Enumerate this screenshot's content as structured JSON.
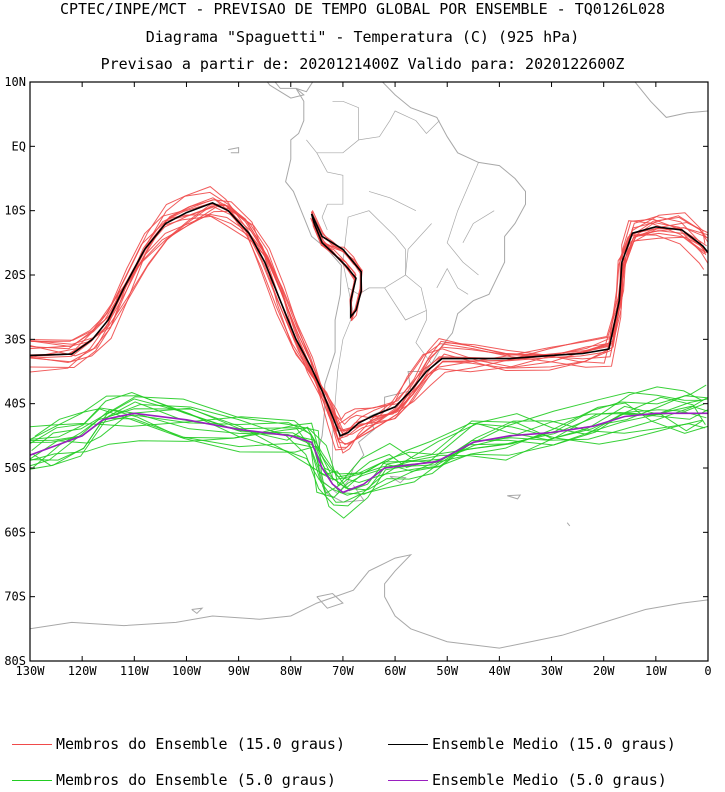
{
  "header": {
    "line1": "CPTEC/INPE/MCT - PREVISAO DE TEMPO GLOBAL POR ENSEMBLE - TQ0126L028",
    "line2": "Diagrama \"Spaguetti\" - Temperatura (C) (925 hPa)",
    "line3": "Previsao a partir de: 2020121400Z  Valido para: 2020122600Z"
  },
  "colors": {
    "member15": "#f04a4a",
    "mean15": "#000000",
    "member5": "#22cc22",
    "mean5": "#9a1fc0",
    "coast": "#a8a8a8"
  },
  "legend": [
    {
      "label": "Membros do Ensemble (15.0 graus)",
      "color": "#f04a4a"
    },
    {
      "label": "Ensemble Medio (15.0 graus)",
      "color": "#000000"
    },
    {
      "label": "Membros do Ensemble (5.0 graus)",
      "color": "#22cc22"
    },
    {
      "label": "Ensemble Medio (5.0 graus)",
      "color": "#9a1fc0"
    }
  ],
  "chart_data": {
    "type": "line",
    "title": "Diagrama \"Spaguetti\" - Temperatura (C) (925 hPa)",
    "xlim": [
      -130,
      0
    ],
    "ylim": [
      -80,
      10
    ],
    "x_ticks": [
      {
        "v": -130,
        "label": "130W"
      },
      {
        "v": -120,
        "label": "120W"
      },
      {
        "v": -110,
        "label": "110W"
      },
      {
        "v": -100,
        "label": "100W"
      },
      {
        "v": -90,
        "label": "90W"
      },
      {
        "v": -80,
        "label": "80W"
      },
      {
        "v": -70,
        "label": "70W"
      },
      {
        "v": -60,
        "label": "60W"
      },
      {
        "v": -50,
        "label": "50W"
      },
      {
        "v": -40,
        "label": "40W"
      },
      {
        "v": -30,
        "label": "30W"
      },
      {
        "v": -20,
        "label": "20W"
      },
      {
        "v": -10,
        "label": "10W"
      },
      {
        "v": 0,
        "label": "0"
      }
    ],
    "y_ticks": [
      {
        "v": 10,
        "label": "10N"
      },
      {
        "v": 0,
        "label": "EQ"
      },
      {
        "v": -10,
        "label": "10S"
      },
      {
        "v": -20,
        "label": "20S"
      },
      {
        "v": -30,
        "label": "30S"
      },
      {
        "v": -40,
        "label": "40S"
      },
      {
        "v": -50,
        "label": "50S"
      },
      {
        "v": -60,
        "label": "60S"
      },
      {
        "v": -70,
        "label": "70S"
      },
      {
        "v": -80,
        "label": "80S"
      }
    ],
    "series": [
      {
        "name": "Ensemble Medio (15.0 graus)",
        "points": [
          [
            -130,
            -32.5
          ],
          [
            -122,
            -32.3
          ],
          [
            -118,
            -30
          ],
          [
            -115,
            -27
          ],
          [
            -112,
            -22
          ],
          [
            -108,
            -16
          ],
          [
            -104,
            -12
          ],
          [
            -100,
            -10.3
          ],
          [
            -95,
            -8.8
          ],
          [
            -92,
            -10
          ],
          [
            -88,
            -13.5
          ],
          [
            -85,
            -18
          ],
          [
            -82,
            -24
          ],
          [
            -79,
            -30
          ],
          [
            -76,
            -34.5
          ],
          [
            -74,
            -38
          ],
          [
            -72,
            -42
          ],
          [
            -70.5,
            -45
          ],
          [
            -69,
            -44.5
          ],
          [
            -67,
            -43
          ],
          [
            -64,
            -41.8
          ],
          [
            -60,
            -40.5
          ],
          [
            -57,
            -38
          ],
          [
            -54,
            -35
          ],
          [
            -51,
            -33
          ],
          [
            -45,
            -33
          ],
          [
            -38,
            -33
          ],
          [
            -30,
            -32.5
          ],
          [
            -24,
            -32.2
          ],
          [
            -19,
            -31.5
          ],
          [
            -17,
            -24
          ],
          [
            -16.5,
            -18
          ],
          [
            -14.5,
            -13.5
          ],
          [
            -10,
            -12.5
          ],
          [
            -5,
            -13
          ],
          [
            -1,
            -15.5
          ],
          [
            0,
            -16.5
          ]
        ]
      },
      {
        "name": "Ensemble Medio (15.0 graus) - Andes",
        "points": [
          [
            -76,
            -10.5
          ],
          [
            -74,
            -14
          ],
          [
            -72,
            -15
          ],
          [
            -70,
            -16
          ],
          [
            -68,
            -18
          ],
          [
            -66.5,
            -19.5
          ],
          [
            -66.5,
            -22.5
          ],
          [
            -67.5,
            -25.5
          ],
          [
            -68.5,
            -26.5
          ],
          [
            -68.5,
            -24
          ],
          [
            -67.5,
            -20.5
          ],
          [
            -69.5,
            -18.5
          ],
          [
            -72,
            -16.5
          ],
          [
            -74,
            -15
          ],
          [
            -75.5,
            -12
          ],
          [
            -76,
            -10.5
          ]
        ]
      },
      {
        "name": "Ensemble Medio (5.0 graus)",
        "points": [
          [
            -130,
            -48
          ],
          [
            -125,
            -46.5
          ],
          [
            -120,
            -45
          ],
          [
            -116,
            -42.5
          ],
          [
            -110,
            -41.5
          ],
          [
            -100,
            -42.5
          ],
          [
            -90,
            -44
          ],
          [
            -80,
            -45
          ],
          [
            -76,
            -46
          ],
          [
            -74,
            -50
          ],
          [
            -72,
            -52.5
          ],
          [
            -70,
            -53.8
          ],
          [
            -66,
            -52.5
          ],
          [
            -62,
            -50
          ],
          [
            -57,
            -49.5
          ],
          [
            -52,
            -49
          ],
          [
            -45,
            -46
          ],
          [
            -38,
            -45
          ],
          [
            -30,
            -44.5
          ],
          [
            -22,
            -43.5
          ],
          [
            -16,
            -42
          ],
          [
            -10,
            -41.5
          ],
          [
            -4,
            -41.5
          ],
          [
            0,
            -41.5
          ]
        ]
      }
    ],
    "member_counts": {
      "Membros do Ensemble (15.0 graus)": 15,
      "Membros do Ensemble (5.0 graus)": 15
    }
  }
}
